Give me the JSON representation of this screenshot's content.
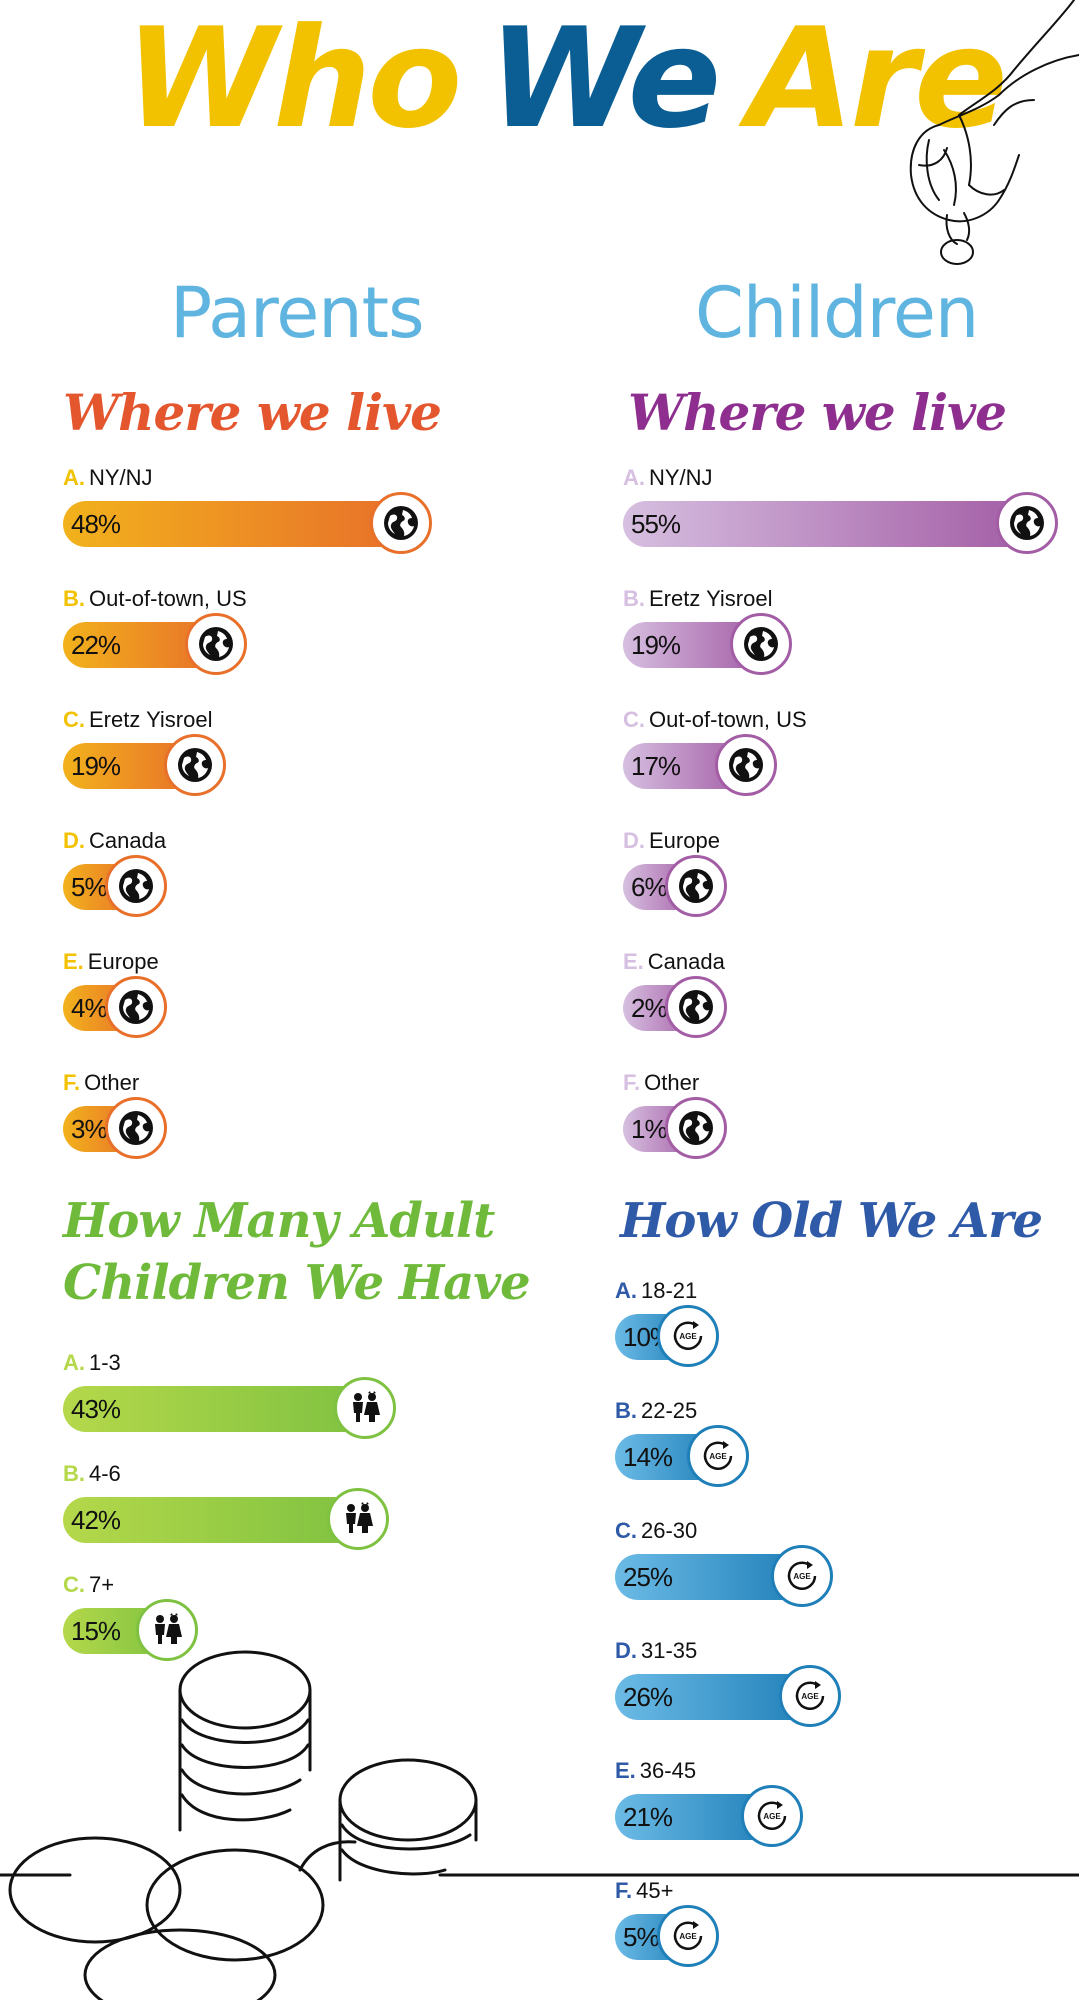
{
  "title": {
    "word1": "Who",
    "word2": "We",
    "word3": "Are"
  },
  "colors": {
    "yellow": "#f2c200",
    "blue_title": "#0a5e93",
    "light_blue": "#5fb4e0",
    "orange_head": "#e4572e",
    "purple_head": "#8e2f8f",
    "green_head": "#6fba3b",
    "navy_head": "#2f5aa8",
    "orange_start": "#f2b21c",
    "orange_end": "#e8702a",
    "purple_start": "#d6bfe0",
    "purple_end": "#a35da5",
    "green_start": "#b5d84a",
    "green_end": "#7fc241",
    "blue_start": "#6cbbe6",
    "blue_end": "#1f7fb8"
  },
  "parents": {
    "heading": "Parents",
    "where_heading": "Where we live",
    "where_items": [
      {
        "letter": "A.",
        "label": "NY/NJ",
        "value": 48,
        "pct": "48%",
        "icon": "globe-icon"
      },
      {
        "letter": "B.",
        "label": "Out-of-town, US",
        "value": 22,
        "pct": "22%",
        "icon": "globe-icon"
      },
      {
        "letter": "C.",
        "label": "Eretz Yisroel",
        "value": 19,
        "pct": "19%",
        "icon": "globe-icon"
      },
      {
        "letter": "D.",
        "label": "Canada",
        "value": 5,
        "pct": "5%",
        "icon": "globe-icon"
      },
      {
        "letter": "E.",
        "label": "Europe",
        "value": 4,
        "pct": "4%",
        "icon": "globe-icon"
      },
      {
        "letter": "F.",
        "label": "Other",
        "value": 3,
        "pct": "3%",
        "icon": "globe-icon"
      }
    ],
    "children_heading_line1": "How Many Adult",
    "children_heading_line2": "Children We Have",
    "children_items": [
      {
        "letter": "A.",
        "label": "1-3",
        "value": 43,
        "pct": "43%",
        "icon": "children-icon"
      },
      {
        "letter": "B.",
        "label": "4-6",
        "value": 42,
        "pct": "42%",
        "icon": "children-icon"
      },
      {
        "letter": "C.",
        "label": "7+",
        "value": 15,
        "pct": "15%",
        "icon": "children-icon"
      }
    ]
  },
  "children": {
    "heading": "Children",
    "where_heading": "Where we live",
    "where_items": [
      {
        "letter": "A.",
        "label": "NY/NJ",
        "value": 55,
        "pct": "55%",
        "icon": "globe-icon"
      },
      {
        "letter": "B.",
        "label": "Eretz Yisroel",
        "value": 19,
        "pct": "19%",
        "icon": "globe-icon"
      },
      {
        "letter": "C.",
        "label": "Out-of-town, US",
        "value": 17,
        "pct": "17%",
        "icon": "globe-icon"
      },
      {
        "letter": "D.",
        "label": "Europe",
        "value": 6,
        "pct": "6%",
        "icon": "globe-icon"
      },
      {
        "letter": "E.",
        "label": "Canada",
        "value": 2,
        "pct": "2%",
        "icon": "globe-icon"
      },
      {
        "letter": "F.",
        "label": "Other",
        "value": 1,
        "pct": "1%",
        "icon": "globe-icon"
      }
    ],
    "age_heading": "How Old We Are",
    "age_icon_text": "AGE",
    "age_items": [
      {
        "letter": "A.",
        "label": "18-21",
        "value": 10,
        "pct": "10%",
        "icon": "age-icon"
      },
      {
        "letter": "B.",
        "label": "22-25",
        "value": 14,
        "pct": "14%",
        "icon": "age-icon"
      },
      {
        "letter": "C.",
        "label": "26-30",
        "value": 25,
        "pct": "25%",
        "icon": "age-icon"
      },
      {
        "letter": "D.",
        "label": "31-35",
        "value": 26,
        "pct": "26%",
        "icon": "age-icon"
      },
      {
        "letter": "E.",
        "label": "36-45",
        "value": 21,
        "pct": "21%",
        "icon": "age-icon"
      },
      {
        "letter": "F.",
        "label": "45+",
        "value": 5,
        "pct": "5%",
        "icon": "age-icon"
      }
    ]
  }
}
